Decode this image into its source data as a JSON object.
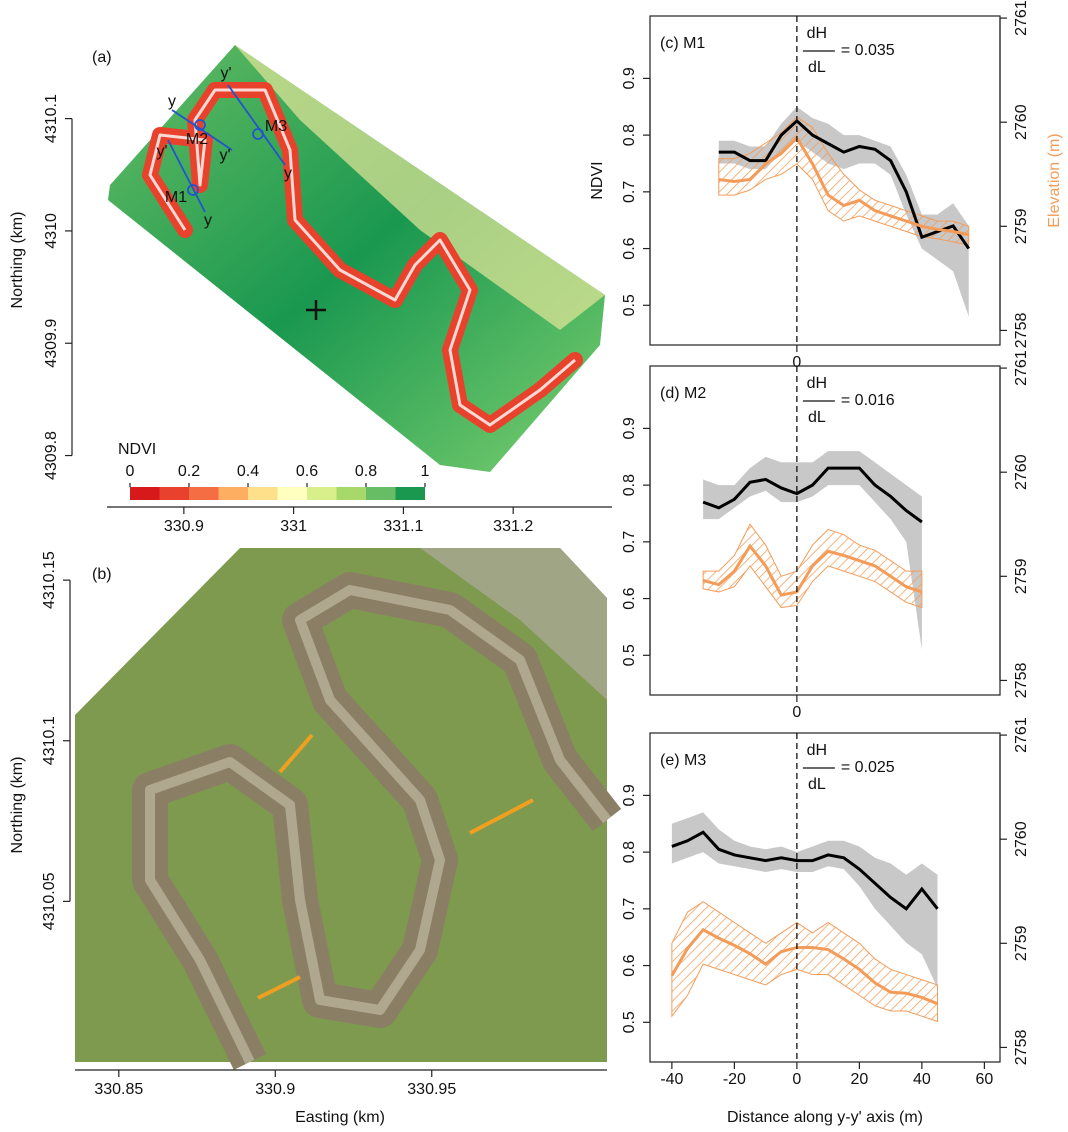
{
  "chart_data": [
    {
      "type": "map",
      "panel_label": "(a)",
      "ylabel": "Northing (km)",
      "xlim": [
        330.83,
        331.29
      ],
      "xticks": [
        330.9,
        331,
        331.1,
        331.2
      ],
      "ylim": [
        4309.78,
        4310.17
      ],
      "yticks": [
        4309.8,
        4309.9,
        4310,
        4310.1
      ],
      "annotations": [
        "y",
        "y'",
        "M2",
        "y'",
        "M3",
        "y",
        "y'",
        "M1",
        "y"
      ],
      "colorbar": {
        "title": "NDVI",
        "lim": [
          0,
          1
        ],
        "ticks": [
          0,
          0.2,
          0.4,
          0.6,
          0.8,
          1
        ],
        "colors": [
          "#d7191c",
          "#e8412c",
          "#f46d43",
          "#fdae61",
          "#fee08b",
          "#ffffbf",
          "#d9ef8b",
          "#a6d96a",
          "#66bd63",
          "#1a9850"
        ]
      }
    },
    {
      "type": "image",
      "panel_label": "(b)",
      "xlabel": "Easting (km)",
      "ylabel": "Northing (km)",
      "xlim": [
        330.836,
        331.006
      ],
      "xticks": [
        330.85,
        330.9,
        330.95
      ],
      "ylim": [
        4310.0,
        4310.16
      ],
      "yticks": [
        4310.05,
        4310.1,
        4310.15
      ]
    },
    {
      "type": "line",
      "panel_label": "(c) M1",
      "ylabel": "NDVI",
      "y2label": "Elevation (m)",
      "annotation": {
        "numerator": "dH",
        "denominator": "dL",
        "value": "= 0.035"
      },
      "xlim": [
        -47,
        65
      ],
      "xticks": [
        0
      ],
      "vline": 0,
      "ylim": [
        0.43,
        1.01
      ],
      "yticks": [
        0.5,
        0.6,
        0.7,
        0.8,
        0.9
      ],
      "y2lim": [
        2757.86,
        2761.02
      ],
      "y2ticks": [
        2758,
        2759,
        2760,
        2761
      ],
      "x": [
        -25,
        -20,
        -15,
        -10,
        -5,
        0,
        5,
        10,
        15,
        20,
        25,
        30,
        35,
        40,
        45,
        50,
        55
      ],
      "series": [
        {
          "color": "#000000",
          "band_color": "#c8c8c8",
          "values": [
            0.77,
            0.77,
            0.755,
            0.755,
            0.8,
            0.825,
            0.8,
            0.785,
            0.77,
            0.78,
            0.775,
            0.755,
            0.7,
            0.62,
            0.63,
            0.64,
            0.6
          ],
          "low": [
            0.75,
            0.75,
            0.74,
            0.74,
            0.77,
            0.79,
            0.77,
            0.75,
            0.74,
            0.75,
            0.75,
            0.73,
            0.66,
            0.6,
            0.58,
            0.56,
            0.48
          ],
          "high": [
            0.79,
            0.79,
            0.78,
            0.78,
            0.82,
            0.85,
            0.83,
            0.82,
            0.8,
            0.8,
            0.79,
            0.78,
            0.73,
            0.66,
            0.66,
            0.68,
            0.64
          ]
        },
        {
          "axis": "y2",
          "color": "#f39c5a",
          "values": [
            2759.45,
            2759.43,
            2759.45,
            2759.6,
            2759.7,
            2759.85,
            2759.6,
            2759.3,
            2759.2,
            2759.25,
            2759.15,
            2759.1,
            2759.05,
            2759.0,
            2758.97,
            2758.95,
            2758.92
          ],
          "low": [
            2759.3,
            2759.3,
            2759.35,
            2759.45,
            2759.5,
            2759.6,
            2759.45,
            2759.15,
            2759.05,
            2759.1,
            2759.05,
            2759.0,
            2758.95,
            2758.9,
            2758.88,
            2758.85,
            2758.82
          ],
          "high": [
            2759.65,
            2759.65,
            2759.7,
            2759.8,
            2759.9,
            2760.05,
            2759.95,
            2759.7,
            2759.5,
            2759.35,
            2759.25,
            2759.2,
            2759.15,
            2759.1,
            2759.05,
            2759.05,
            2759.0
          ]
        }
      ]
    },
    {
      "type": "line",
      "panel_label": "(d) M2",
      "annotation": {
        "numerator": "dH",
        "denominator": "dL",
        "value": "= 0.016"
      },
      "xlim": [
        -47,
        65
      ],
      "xticks": [
        0
      ],
      "vline": 0,
      "ylim": [
        0.43,
        1.01
      ],
      "yticks": [
        0.5,
        0.6,
        0.7,
        0.8,
        0.9
      ],
      "y2lim": [
        2757.86,
        2761.02
      ],
      "y2ticks": [
        2758,
        2759,
        2760,
        2761
      ],
      "x": [
        -30,
        -25,
        -20,
        -15,
        -10,
        -5,
        0,
        5,
        10,
        15,
        20,
        25,
        30,
        35,
        40
      ],
      "series": [
        {
          "color": "#000000",
          "band_color": "#c8c8c8",
          "values": [
            0.77,
            0.76,
            0.775,
            0.805,
            0.81,
            0.795,
            0.785,
            0.8,
            0.83,
            0.83,
            0.83,
            0.8,
            0.78,
            0.755,
            0.735
          ],
          "low": [
            0.74,
            0.74,
            0.76,
            0.78,
            0.79,
            0.77,
            0.77,
            0.78,
            0.8,
            0.8,
            0.8,
            0.77,
            0.74,
            0.7,
            0.51
          ],
          "high": [
            0.81,
            0.8,
            0.8,
            0.83,
            0.85,
            0.84,
            0.84,
            0.84,
            0.86,
            0.86,
            0.86,
            0.84,
            0.82,
            0.8,
            0.78
          ]
        },
        {
          "axis": "y2",
          "color": "#f39c5a",
          "values": [
            2758.96,
            2758.92,
            2759.05,
            2759.29,
            2759.1,
            2758.82,
            2758.85,
            2759.1,
            2759.24,
            2759.2,
            2759.15,
            2759.1,
            2759.0,
            2758.9,
            2758.85
          ],
          "low": [
            2758.88,
            2758.85,
            2758.9,
            2759.1,
            2758.9,
            2758.7,
            2758.72,
            2758.95,
            2759.1,
            2759.05,
            2759.0,
            2758.95,
            2758.85,
            2758.75,
            2758.7
          ],
          "high": [
            2759.05,
            2759.05,
            2759.2,
            2759.5,
            2759.3,
            2759.0,
            2759.05,
            2759.3,
            2759.45,
            2759.4,
            2759.3,
            2759.25,
            2759.15,
            2759.05,
            2759.05
          ]
        }
      ]
    },
    {
      "type": "line",
      "panel_label": "(e) M3",
      "xlabel": "Distance along y-y' axis (m)",
      "annotation": {
        "numerator": "dH",
        "denominator": "dL",
        "value": "= 0.025"
      },
      "xlim": [
        -47,
        65
      ],
      "xticks": [
        -40,
        -20,
        0,
        20,
        40,
        60
      ],
      "vline": 0,
      "ylim": [
        0.43,
        1.01
      ],
      "yticks": [
        0.5,
        0.6,
        0.7,
        0.8,
        0.9
      ],
      "y2lim": [
        2757.86,
        2761.02
      ],
      "y2ticks": [
        2758,
        2759,
        2760,
        2761
      ],
      "x": [
        -40,
        -35,
        -30,
        -25,
        -20,
        -15,
        -10,
        -5,
        0,
        5,
        10,
        15,
        20,
        25,
        30,
        35,
        40,
        45
      ],
      "series": [
        {
          "color": "#000000",
          "band_color": "#c8c8c8",
          "values": [
            0.81,
            0.82,
            0.835,
            0.805,
            0.795,
            0.79,
            0.785,
            0.79,
            0.785,
            0.785,
            0.795,
            0.79,
            0.77,
            0.745,
            0.72,
            0.7,
            0.735,
            0.7
          ],
          "low": [
            0.78,
            0.79,
            0.8,
            0.78,
            0.775,
            0.77,
            0.765,
            0.77,
            0.765,
            0.765,
            0.775,
            0.77,
            0.74,
            0.7,
            0.67,
            0.64,
            0.62,
            0.56
          ],
          "high": [
            0.85,
            0.86,
            0.87,
            0.84,
            0.82,
            0.81,
            0.805,
            0.81,
            0.8,
            0.81,
            0.82,
            0.82,
            0.81,
            0.79,
            0.78,
            0.76,
            0.78,
            0.76
          ]
        },
        {
          "axis": "y2",
          "color": "#f39c5a",
          "values": [
            2758.69,
            2758.95,
            2759.13,
            2759.05,
            2758.98,
            2758.9,
            2758.8,
            2758.92,
            2758.96,
            2758.96,
            2758.94,
            2758.85,
            2758.75,
            2758.62,
            2758.53,
            2758.52,
            2758.48,
            2758.42
          ],
          "low": [
            2758.3,
            2758.5,
            2758.8,
            2758.75,
            2758.7,
            2758.65,
            2758.6,
            2758.7,
            2758.75,
            2758.7,
            2758.7,
            2758.6,
            2758.5,
            2758.4,
            2758.35,
            2758.35,
            2758.3,
            2758.25
          ],
          "high": [
            2759.0,
            2759.3,
            2759.4,
            2759.3,
            2759.2,
            2759.1,
            2759.0,
            2759.1,
            2759.2,
            2759.1,
            2759.2,
            2759.1,
            2759.0,
            2758.85,
            2758.75,
            2758.7,
            2758.65,
            2758.6
          ]
        }
      ]
    }
  ]
}
